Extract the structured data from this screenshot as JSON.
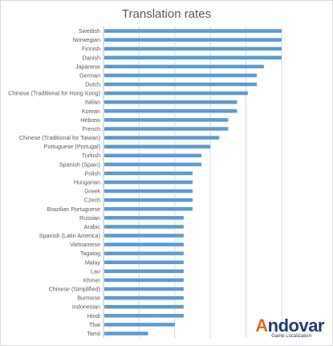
{
  "chart_data": {
    "type": "bar",
    "orientation": "horizontal",
    "title": "Translation rates",
    "xlabel": "",
    "ylabel": "",
    "grid": true,
    "legend": "none",
    "xlim": [
      0,
      100
    ],
    "bar_color": "#5b9bd5",
    "categories": [
      "Swedish",
      "Norwegian",
      "Finnish",
      "Danish",
      "Japanese",
      "German",
      "Dutch",
      "Chinese (Traditional for Hong Kong)",
      "Italian",
      "Korean",
      "Hebrew",
      "French",
      "Chinese (Traditional for Taiwan)",
      "Portuguese (Portugal)",
      "Turkish",
      "Spanish (Spain)",
      "Polish",
      "Hungarian",
      "Greek",
      "Czech",
      "Brazilian Portuguese",
      "Russian",
      "Arabic",
      "Spanish (Latin America)",
      "Vietnamese",
      "Tagalog",
      "Malay",
      "Lao",
      "Khmer",
      "Chinese (Simplified)",
      "Burmese",
      "Indonesian",
      "Hindi",
      "Thai",
      "Tamil"
    ],
    "values": [
      100,
      100,
      100,
      100,
      90,
      86,
      86,
      81,
      75,
      75,
      70,
      70,
      65,
      60,
      55,
      55,
      50,
      50,
      50,
      50,
      50,
      45,
      45,
      45,
      45,
      45,
      45,
      45,
      45,
      45,
      45,
      45,
      45,
      40,
      25
    ]
  },
  "logo": {
    "wordmark_a": "A",
    "wordmark_rest": "ndovar",
    "tagline": "Game Localization"
  }
}
